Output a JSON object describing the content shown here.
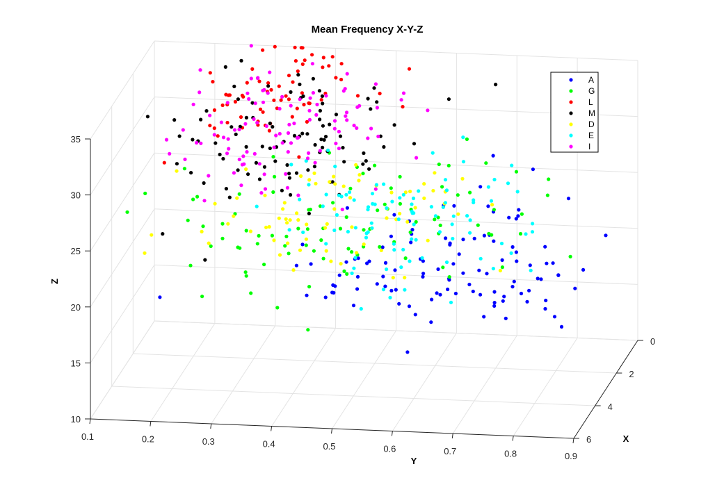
{
  "chart_data": {
    "type": "scatter",
    "title": "Mean Frequency X-Y-Z",
    "xlabel": "X",
    "ylabel": "Y",
    "zlabel": "Z",
    "xlim": [
      0,
      6
    ],
    "ylim": [
      0.1,
      0.9
    ],
    "zlim": [
      10,
      35
    ],
    "x_ticks": [
      "0",
      "2",
      "4",
      "6"
    ],
    "y_ticks": [
      "0.1",
      "0.2",
      "0.3",
      "0.4",
      "0.5",
      "0.6",
      "0.7",
      "0.8",
      "0.9"
    ],
    "z_ticks": [
      "10",
      "15",
      "20",
      "25",
      "30",
      "35"
    ],
    "grid": true,
    "legend_position": "top-right",
    "series": [
      {
        "name": "A",
        "color": "#0000ff",
        "clusters": [
          {
            "count": 110,
            "cx": 2.8,
            "cy": 0.62,
            "cz": 20.3,
            "sx": 1.6,
            "sy": 0.12,
            "sz": 2.0
          }
        ]
      },
      {
        "name": "G",
        "color": "#00ff00",
        "clusters": [
          {
            "count": 95,
            "cx": 3.0,
            "cy": 0.48,
            "cz": 24.0,
            "sx": 1.7,
            "sy": 0.17,
            "sz": 2.6
          }
        ]
      },
      {
        "name": "L",
        "color": "#ff0000",
        "clusters": [
          {
            "count": 70,
            "cx": 1.8,
            "cy": 0.34,
            "cz": 33.8,
            "sx": 1.3,
            "sy": 0.07,
            "sz": 1.2
          }
        ]
      },
      {
        "name": "M",
        "color": "#000000",
        "clusters": [
          {
            "count": 95,
            "cx": 2.6,
            "cy": 0.38,
            "cz": 31.2,
            "sx": 1.7,
            "sy": 0.09,
            "sz": 2.2
          }
        ]
      },
      {
        "name": "D",
        "color": "#ffff00",
        "clusters": [
          {
            "count": 75,
            "cx": 3.0,
            "cy": 0.46,
            "cz": 24.2,
            "sx": 1.7,
            "sy": 0.15,
            "sz": 2.4
          }
        ]
      },
      {
        "name": "E",
        "color": "#00ffff",
        "clusters": [
          {
            "count": 95,
            "cx": 2.8,
            "cy": 0.57,
            "cz": 24.3,
            "sx": 1.7,
            "sy": 0.12,
            "sz": 2.2
          }
        ]
      },
      {
        "name": "I",
        "color": "#ff00ff",
        "clusters": [
          {
            "count": 105,
            "cx": 2.6,
            "cy": 0.36,
            "cz": 31.2,
            "sx": 1.6,
            "sy": 0.09,
            "sz": 2.4
          }
        ]
      }
    ]
  }
}
